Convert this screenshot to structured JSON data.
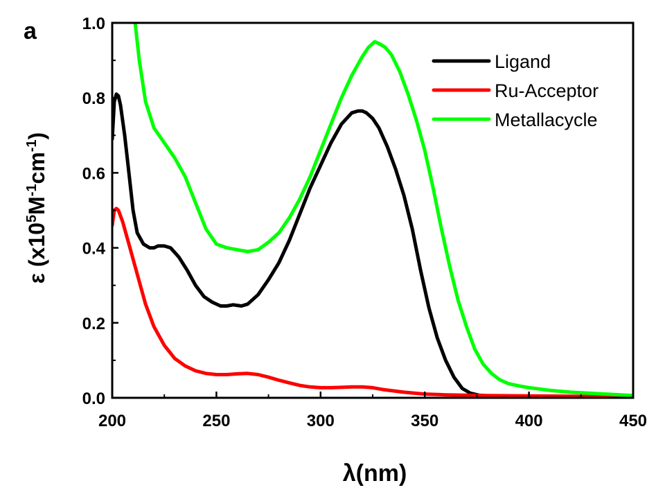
{
  "panel_label": "a",
  "chart_data": {
    "type": "line",
    "title": "",
    "xlabel": "λ(nm)",
    "ylabel": {
      "base": "ε (x10",
      "sup1": "5",
      "mid": "M",
      "sup2": "-1",
      "mid2": "cm",
      "sup3": "-1",
      "end": ")"
    },
    "xlim": [
      200,
      450
    ],
    "ylim": [
      0.0,
      1.0
    ],
    "xticks": [
      200,
      250,
      300,
      350,
      400,
      450
    ],
    "yticks": [
      0.0,
      0.2,
      0.4,
      0.6,
      0.8,
      1.0
    ],
    "xtick_labels": [
      "200",
      "250",
      "300",
      "350",
      "400",
      "450"
    ],
    "ytick_labels": [
      "0.0",
      "0.2",
      "0.4",
      "0.6",
      "0.8",
      "1.0"
    ],
    "grid": false,
    "legend_position": "top-right",
    "series": [
      {
        "name": "Ligand",
        "color": "#000000",
        "x": [
          200,
          201,
          202,
          203,
          204,
          206,
          208,
          210,
          212,
          215,
          218,
          220,
          222,
          225,
          228,
          232,
          236,
          240,
          244,
          248,
          252,
          255,
          258,
          262,
          265,
          270,
          275,
          280,
          285,
          290,
          295,
          300,
          305,
          310,
          315,
          318,
          320,
          322,
          325,
          328,
          332,
          336,
          340,
          344,
          348,
          352,
          356,
          360,
          364,
          368,
          372,
          376,
          380,
          390,
          400,
          420,
          450
        ],
        "y": [
          0.69,
          0.79,
          0.81,
          0.805,
          0.78,
          0.7,
          0.6,
          0.5,
          0.44,
          0.41,
          0.4,
          0.4,
          0.405,
          0.405,
          0.4,
          0.375,
          0.34,
          0.3,
          0.27,
          0.255,
          0.245,
          0.245,
          0.248,
          0.245,
          0.25,
          0.275,
          0.315,
          0.36,
          0.42,
          0.49,
          0.56,
          0.62,
          0.68,
          0.73,
          0.76,
          0.765,
          0.765,
          0.76,
          0.745,
          0.72,
          0.67,
          0.61,
          0.54,
          0.45,
          0.34,
          0.24,
          0.16,
          0.1,
          0.055,
          0.025,
          0.012,
          0.007,
          0.005,
          0.003,
          0.002,
          0.001,
          0.001
        ]
      },
      {
        "name": "Ru-Acceptor",
        "color": "#ff0000",
        "x": [
          200,
          201,
          202,
          203,
          205,
          208,
          212,
          216,
          220,
          225,
          230,
          235,
          240,
          245,
          250,
          255,
          260,
          265,
          270,
          275,
          280,
          285,
          290,
          295,
          300,
          305,
          310,
          315,
          320,
          325,
          330,
          340,
          350,
          360,
          370,
          380,
          400,
          420,
          450
        ],
        "y": [
          0.46,
          0.5,
          0.505,
          0.5,
          0.47,
          0.41,
          0.33,
          0.25,
          0.19,
          0.14,
          0.105,
          0.085,
          0.072,
          0.065,
          0.062,
          0.062,
          0.064,
          0.065,
          0.062,
          0.055,
          0.047,
          0.04,
          0.033,
          0.029,
          0.027,
          0.027,
          0.028,
          0.029,
          0.029,
          0.027,
          0.022,
          0.015,
          0.01,
          0.008,
          0.007,
          0.006,
          0.005,
          0.004,
          0.002
        ]
      },
      {
        "name": "Metallacycle",
        "color": "#00ff00",
        "x": [
          211,
          213,
          216,
          220,
          225,
          230,
          235,
          240,
          245,
          250,
          255,
          260,
          265,
          270,
          275,
          280,
          285,
          290,
          295,
          300,
          305,
          310,
          315,
          320,
          323,
          326,
          328,
          331,
          334,
          338,
          342,
          346,
          350,
          354,
          358,
          362,
          366,
          370,
          374,
          378,
          382,
          386,
          390,
          395,
          400,
          410,
          420,
          430,
          440,
          450
        ],
        "y": [
          1.0,
          0.9,
          0.79,
          0.72,
          0.68,
          0.64,
          0.59,
          0.52,
          0.45,
          0.41,
          0.4,
          0.395,
          0.39,
          0.395,
          0.415,
          0.44,
          0.48,
          0.53,
          0.59,
          0.66,
          0.73,
          0.8,
          0.86,
          0.91,
          0.935,
          0.95,
          0.945,
          0.935,
          0.915,
          0.87,
          0.81,
          0.74,
          0.66,
          0.56,
          0.45,
          0.35,
          0.26,
          0.19,
          0.13,
          0.09,
          0.065,
          0.048,
          0.038,
          0.032,
          0.027,
          0.02,
          0.015,
          0.012,
          0.009,
          0.006
        ]
      }
    ]
  }
}
